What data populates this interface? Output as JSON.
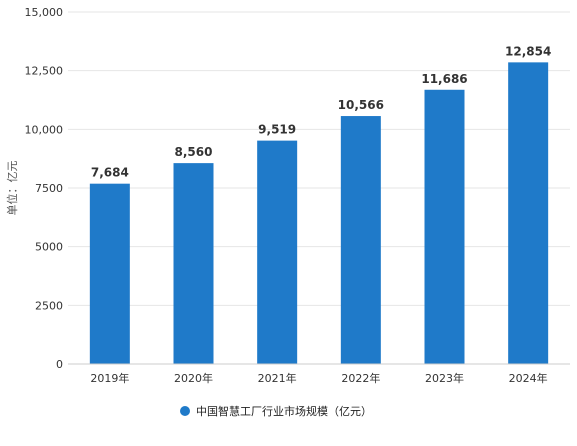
{
  "chart_data": {
    "type": "bar",
    "categories": [
      "2019年",
      "2020年",
      "2021年",
      "2022年",
      "2023年",
      "2024年"
    ],
    "series": [
      {
        "name": "中国智慧工厂行业市场规模（亿元）",
        "values": [
          7684,
          8560,
          9519,
          10566,
          11686,
          12854
        ],
        "value_labels": [
          "7,684",
          "8,560",
          "9,519",
          "10,566",
          "11,686",
          "12,854"
        ]
      }
    ],
    "ylabel": "单位：亿元",
    "ylim": [
      0,
      15000
    ],
    "yticks": [
      0,
      2500,
      5000,
      7500,
      10000,
      12500,
      15000
    ],
    "ytick_labels": [
      "0",
      "2500",
      "5000",
      "7500",
      "10,000",
      "12,500",
      "15,000"
    ],
    "grid": true,
    "legend_position": "bottom",
    "bar_color": "#1f7ac9",
    "grid_color": "#e6e6e6"
  }
}
